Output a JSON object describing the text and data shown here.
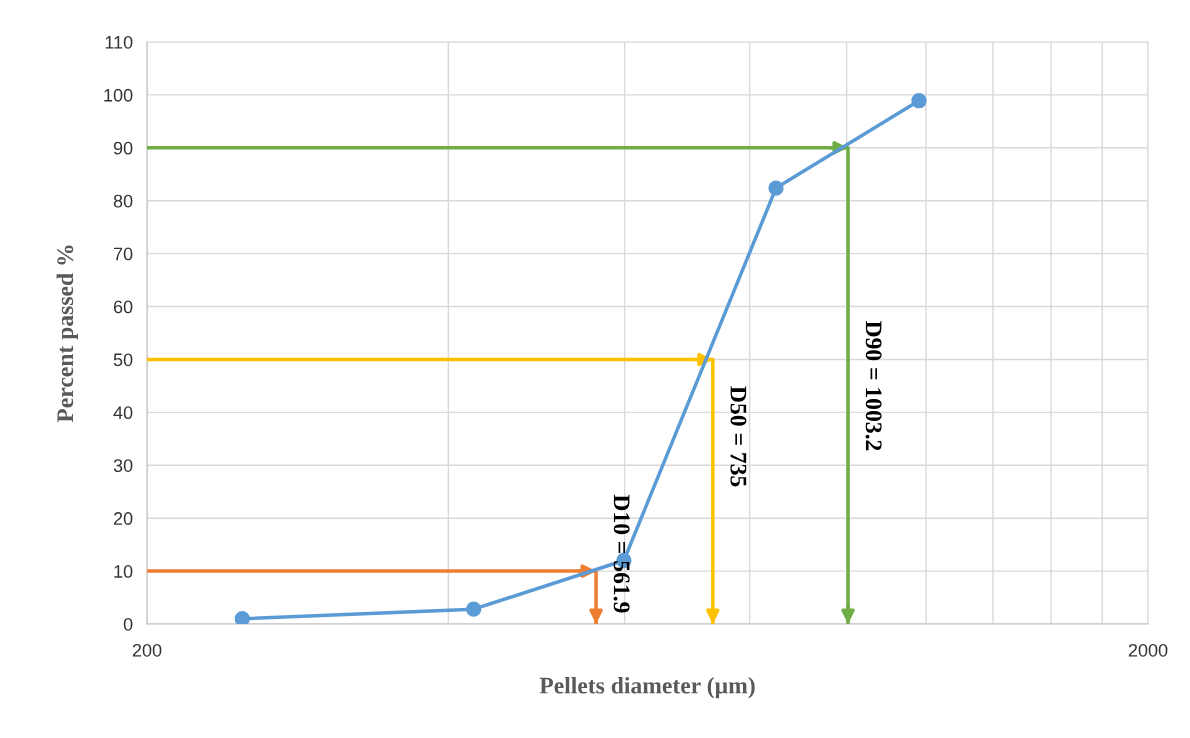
{
  "chart_data": {
    "type": "line",
    "xlabel": "Pellets diameter (µm)",
    "ylabel": "Percent passed %",
    "x": [
      249,
      424,
      599,
      850,
      1181
    ],
    "series": [
      {
        "color": "#5b9bd5",
        "values": [
          1,
          2.8,
          12,
          82.4,
          98.9
        ]
      },
      {
        "name": "D10 = 561.9",
        "color": "#ed7d31",
        "x": [
          200,
          561.9,
          561.9
        ],
        "values": [
          10,
          10,
          0
        ],
        "marker": "none"
      },
      {
        "name": "D50 = 735",
        "color": "#ffc000",
        "x": [
          200,
          735,
          735
        ],
        "values": [
          50,
          50,
          0
        ],
        "marker": "none"
      },
      {
        "name": "D90 = 1003.2",
        "color": "#70ad47",
        "x": [
          200,
          1003.2,
          1003.2
        ],
        "values": [
          90,
          90,
          0
        ],
        "marker": "none"
      }
    ],
    "marker": "circle",
    "line_style": "solid",
    "log": "x",
    "grid": true,
    "xlim": [
      200,
      2000
    ],
    "xticks": [
      200,
      {
        "value": 400,
        "label": null
      },
      {
        "value": 600,
        "label": null
      },
      {
        "value": 800,
        "label": null
      },
      {
        "value": 1000,
        "label": null
      },
      {
        "value": 1200,
        "label": null
      },
      {
        "value": 1400,
        "label": null
      },
      {
        "value": 1600,
        "label": null
      },
      {
        "value": 1800,
        "label": null
      },
      2000
    ],
    "ylim": [
      0,
      110
    ],
    "yticks": [
      0,
      10,
      20,
      30,
      40,
      50,
      60,
      70,
      80,
      90,
      100,
      110
    ]
  }
}
